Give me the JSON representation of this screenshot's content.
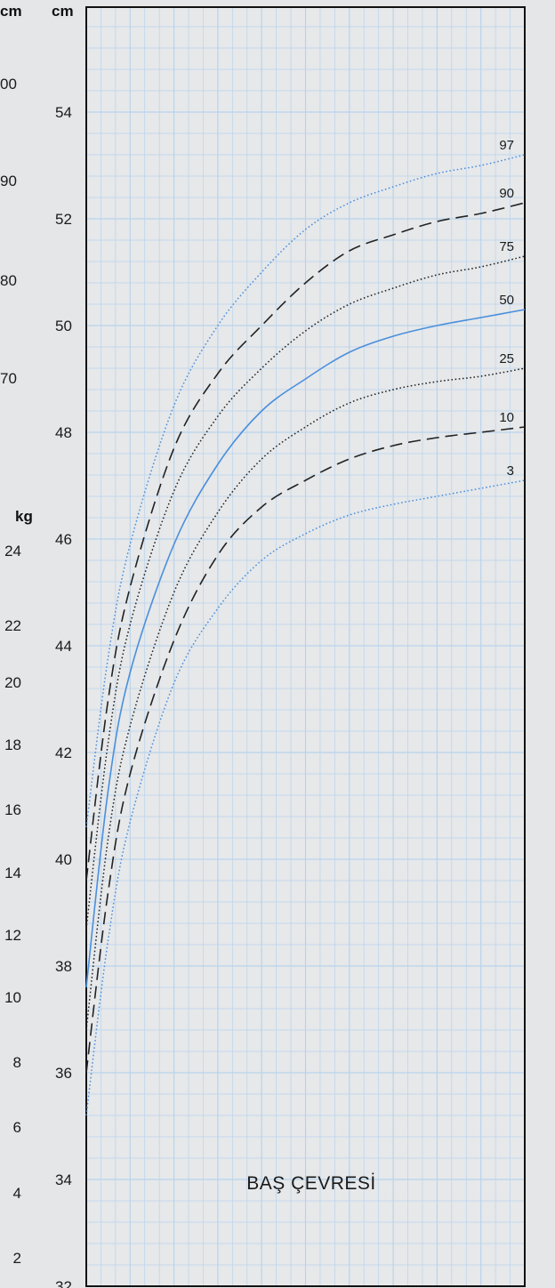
{
  "chart_data": {
    "type": "line",
    "title": "BAŞ ÇEVRESİ",
    "ylabel": "cm",
    "ylim": [
      32,
      56
    ],
    "y_ticks": [
      32,
      34,
      36,
      38,
      40,
      42,
      44,
      46,
      48,
      50,
      52,
      54
    ],
    "x_ticks": [],
    "xlim": [
      0,
      1
    ],
    "grid": true,
    "left_axes": {
      "length": {
        "unit": "cm",
        "tick_labels": [
          "00",
          "90",
          "80",
          "70"
        ]
      },
      "weight": {
        "unit": "kg",
        "tick_labels": [
          "24",
          "22",
          "20",
          "18",
          "16",
          "14",
          "12",
          "10",
          "8",
          "6",
          "4",
          "2"
        ]
      }
    },
    "series": [
      {
        "name": "97",
        "color": "#4a8fdc",
        "style": "dotted",
        "points": [
          [
            0,
            40.6
          ],
          [
            0.05,
            43.8
          ],
          [
            0.1,
            45.9
          ],
          [
            0.2,
            48.5
          ],
          [
            0.3,
            50.0
          ],
          [
            0.4,
            51.0
          ],
          [
            0.5,
            51.8
          ],
          [
            0.6,
            52.3
          ],
          [
            0.7,
            52.6
          ],
          [
            0.8,
            52.85
          ],
          [
            0.9,
            53.0
          ],
          [
            1.0,
            53.2
          ]
        ]
      },
      {
        "name": "90",
        "color": "#222222",
        "style": "dashed",
        "points": [
          [
            0,
            39.6
          ],
          [
            0.05,
            43.0
          ],
          [
            0.1,
            45.1
          ],
          [
            0.2,
            47.7
          ],
          [
            0.3,
            49.1
          ],
          [
            0.4,
            50.0
          ],
          [
            0.5,
            50.8
          ],
          [
            0.6,
            51.4
          ],
          [
            0.7,
            51.7
          ],
          [
            0.8,
            51.95
          ],
          [
            0.9,
            52.1
          ],
          [
            1.0,
            52.3
          ]
        ]
      },
      {
        "name": "75",
        "color": "#222222",
        "style": "dotted",
        "points": [
          [
            0,
            38.7
          ],
          [
            0.05,
            42.2
          ],
          [
            0.1,
            44.4
          ],
          [
            0.2,
            46.9
          ],
          [
            0.3,
            48.3
          ],
          [
            0.4,
            49.2
          ],
          [
            0.5,
            49.9
          ],
          [
            0.6,
            50.4
          ],
          [
            0.7,
            50.7
          ],
          [
            0.8,
            50.95
          ],
          [
            0.9,
            51.1
          ],
          [
            1.0,
            51.3
          ]
        ]
      },
      {
        "name": "50",
        "color": "#4a8fdc",
        "style": "solid",
        "points": [
          [
            0,
            37.6
          ],
          [
            0.05,
            41.3
          ],
          [
            0.1,
            43.5
          ],
          [
            0.2,
            45.9
          ],
          [
            0.3,
            47.4
          ],
          [
            0.4,
            48.4
          ],
          [
            0.5,
            49.0
          ],
          [
            0.6,
            49.5
          ],
          [
            0.7,
            49.8
          ],
          [
            0.8,
            50.0
          ],
          [
            0.9,
            50.15
          ],
          [
            1.0,
            50.3
          ]
        ]
      },
      {
        "name": "25",
        "color": "#222222",
        "style": "dotted",
        "points": [
          [
            0,
            36.8
          ],
          [
            0.05,
            40.4
          ],
          [
            0.1,
            42.5
          ],
          [
            0.2,
            45.0
          ],
          [
            0.3,
            46.5
          ],
          [
            0.4,
            47.5
          ],
          [
            0.5,
            48.1
          ],
          [
            0.6,
            48.55
          ],
          [
            0.7,
            48.8
          ],
          [
            0.8,
            48.95
          ],
          [
            0.9,
            49.05
          ],
          [
            1.0,
            49.2
          ]
        ]
      },
      {
        "name": "10",
        "color": "#222222",
        "style": "dashed",
        "points": [
          [
            0,
            36.0
          ],
          [
            0.05,
            39.4
          ],
          [
            0.1,
            41.6
          ],
          [
            0.2,
            44.1
          ],
          [
            0.3,
            45.7
          ],
          [
            0.4,
            46.6
          ],
          [
            0.5,
            47.1
          ],
          [
            0.6,
            47.5
          ],
          [
            0.7,
            47.75
          ],
          [
            0.8,
            47.9
          ],
          [
            0.9,
            48.0
          ],
          [
            1.0,
            48.1
          ]
        ]
      },
      {
        "name": "3",
        "color": "#4a8fdc",
        "style": "dotted",
        "points": [
          [
            0,
            35.2
          ],
          [
            0.05,
            38.5
          ],
          [
            0.1,
            40.7
          ],
          [
            0.2,
            43.3
          ],
          [
            0.3,
            44.7
          ],
          [
            0.4,
            45.6
          ],
          [
            0.5,
            46.1
          ],
          [
            0.6,
            46.45
          ],
          [
            0.7,
            46.65
          ],
          [
            0.8,
            46.8
          ],
          [
            0.9,
            46.95
          ],
          [
            1.0,
            47.1
          ]
        ]
      }
    ]
  },
  "colors": {
    "background": "#e4e6e8",
    "grid": "#b9d3ec",
    "frame": "#111111"
  }
}
